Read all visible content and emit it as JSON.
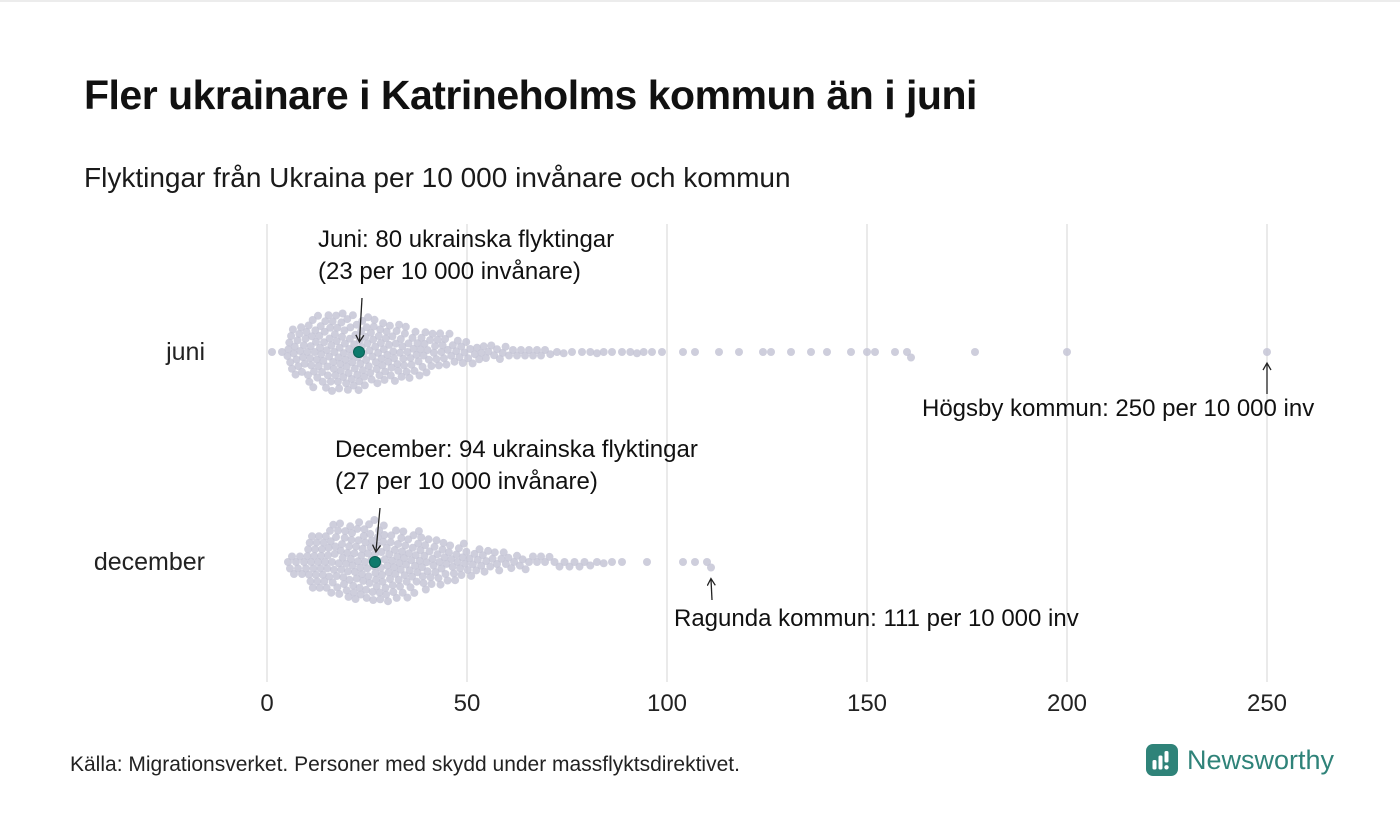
{
  "title": "Fler ukrainare i Katrineholms kommun än i juni",
  "subtitle": "Flyktingar från Ukraina per 10 000 invånare och kommun",
  "source": "Källa: Migrationsverket. Personer med skydd under massflyktsdirektivet.",
  "logo": {
    "text": "Newsworthy"
  },
  "colors": {
    "dot": "#c5c6d6",
    "highlight": "#0d7a6c",
    "highlight_stroke": "#0a5f54",
    "grid": "#d4d4d4",
    "text": "#1a1a1a",
    "brand": "#2f8379"
  },
  "chart_data": {
    "type": "beeswarm",
    "title": "Fler ukrainare i Katrineholms kommun än i juni",
    "subtitle": "Flyktingar från Ukraina per 10 000 invånare och kommun",
    "xlabel": "Flyktingar från Ukraina per 10 000 invånare",
    "x_ticks": [
      0,
      50,
      100,
      150,
      200,
      250
    ],
    "xlim": [
      0,
      255
    ],
    "grid": "vertical",
    "rows": [
      {
        "label": "juni",
        "highlight": {
          "value": 23,
          "refugees": 80,
          "label_line1": "Juni: 80 ukrainska flyktingar",
          "label_line2": "(23 per 10 000 invånare)"
        },
        "outlier": {
          "municipality": "Högsby kommun",
          "value": 250,
          "label": "Högsby kommun: 250 per 10 000 inv"
        },
        "bins": [
          [
            0,
            5,
            2
          ],
          [
            5,
            10,
            22
          ],
          [
            10,
            15,
            30
          ],
          [
            15,
            20,
            34
          ],
          [
            20,
            25,
            32
          ],
          [
            25,
            30,
            28
          ],
          [
            30,
            35,
            24
          ],
          [
            35,
            40,
            20
          ],
          [
            40,
            45,
            16
          ],
          [
            45,
            50,
            12
          ],
          [
            50,
            55,
            9
          ],
          [
            55,
            60,
            7
          ],
          [
            60,
            65,
            5
          ],
          [
            65,
            70,
            5
          ],
          [
            70,
            75,
            3
          ],
          [
            75,
            80,
            2
          ],
          [
            80,
            85,
            3
          ],
          [
            85,
            90,
            2
          ],
          [
            90,
            95,
            3
          ],
          [
            95,
            100,
            2
          ]
        ],
        "singles": [
          104,
          107,
          113,
          118,
          124,
          126,
          131,
          136,
          140,
          146,
          150,
          152,
          157,
          160,
          161,
          177,
          200,
          250
        ]
      },
      {
        "label": "december",
        "highlight": {
          "value": 27,
          "refugees": 94,
          "label_line1": "December: 94 ukrainska flyktingar",
          "label_line2": "(27 per 10 000 invånare)"
        },
        "outlier": {
          "municipality": "Ragunda kommun",
          "value": 111,
          "label": "Ragunda kommun: 111 per 10 000 inv"
        },
        "bins": [
          [
            5,
            10,
            10
          ],
          [
            10,
            15,
            26
          ],
          [
            15,
            20,
            30
          ],
          [
            20,
            25,
            34
          ],
          [
            25,
            30,
            34
          ],
          [
            30,
            35,
            30
          ],
          [
            35,
            40,
            26
          ],
          [
            40,
            45,
            20
          ],
          [
            45,
            50,
            16
          ],
          [
            50,
            55,
            12
          ],
          [
            55,
            60,
            9
          ],
          [
            60,
            65,
            7
          ],
          [
            65,
            70,
            5
          ],
          [
            70,
            75,
            4
          ],
          [
            75,
            80,
            4
          ],
          [
            80,
            85,
            3
          ],
          [
            85,
            90,
            2
          ]
        ],
        "singles": [
          95,
          104,
          107,
          110,
          111
        ]
      }
    ]
  }
}
